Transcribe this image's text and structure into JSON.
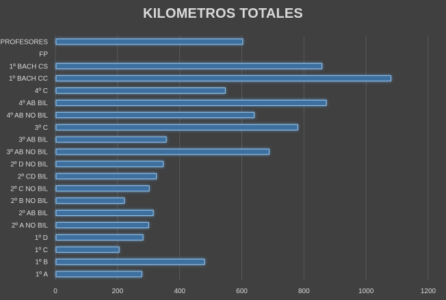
{
  "chart_data": {
    "type": "bar",
    "orientation": "horizontal",
    "title": "KILOMETROS TOTALES",
    "xlabel": "",
    "ylabel": "",
    "categories": [
      "1º A",
      "1º B",
      "1º C",
      "1º D",
      "2º A NO BIL",
      "2º AB BIL",
      "2º B NO BIL",
      "2º C NO BIL",
      "2º CD BIL",
      "2º D NO BIL",
      "3º AB NO BIL",
      "3º AB BIL",
      "3º C",
      "4º AB NO BIL",
      "4º AB BIL",
      "4º C",
      "1º BACH CC",
      "1º BACH CS",
      "FP",
      "PROFESORES"
    ],
    "values": [
      278,
      480,
      205,
      282,
      300,
      315,
      222,
      302,
      325,
      347,
      688,
      357,
      780,
      640,
      872,
      547,
      1080,
      858,
      0,
      603
    ],
    "xlim": [
      0,
      1200
    ],
    "xticks": [
      0,
      200,
      400,
      600,
      800,
      1000,
      1200
    ],
    "grid": true,
    "legend": "none",
    "colors": {
      "background": "#404040",
      "bar_fill": "#3d6f9f",
      "bar_edge": "#9ec6ea",
      "bar_glow": "#5b9bd5",
      "text": "#d9d9d9",
      "grid": "#595959"
    }
  }
}
